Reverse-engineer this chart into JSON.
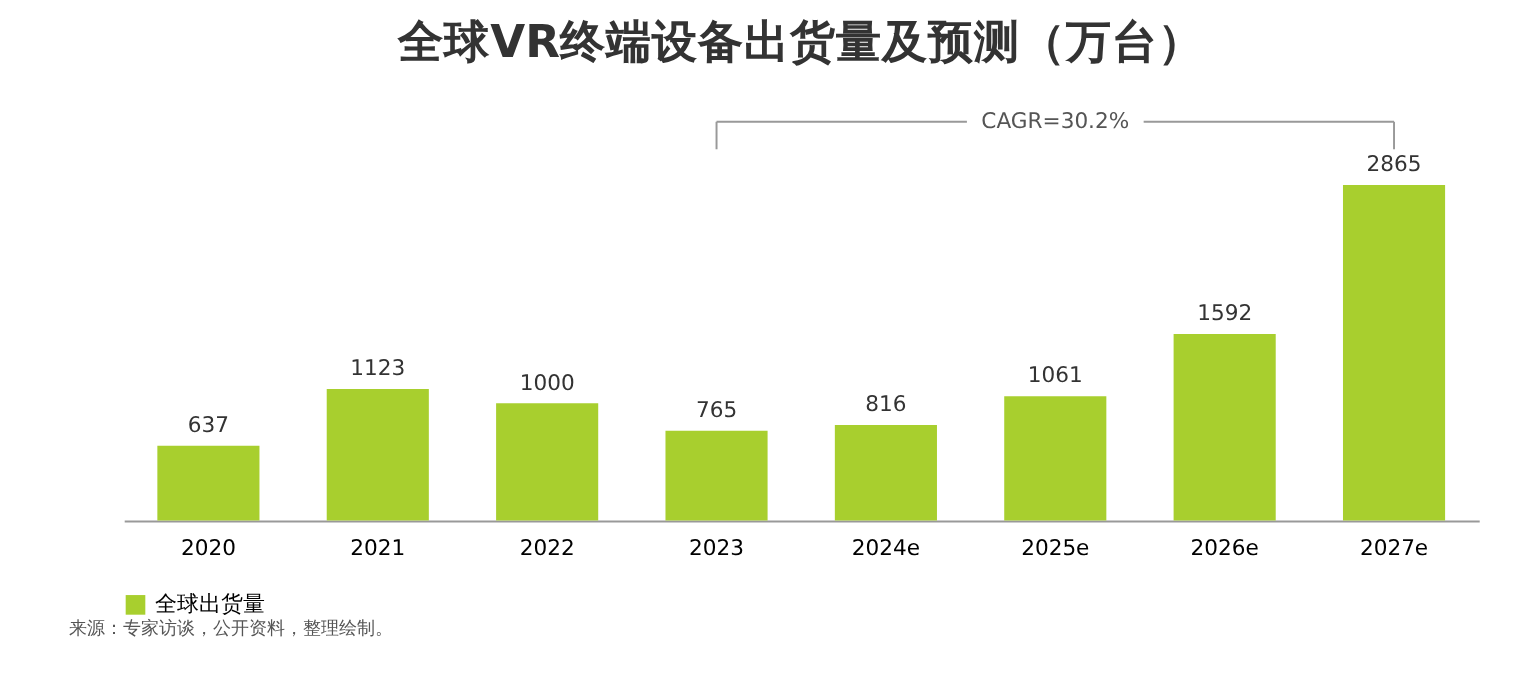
{
  "chart_data": {
    "type": "bar",
    "title": "全球VR终端设备出货量及预测（万台）",
    "categories": [
      "2020",
      "2021",
      "2022",
      "2023",
      "2024e",
      "2025e",
      "2026e",
      "2027e"
    ],
    "series": [
      {
        "name": "全球出货量",
        "color": "#a8cf2e",
        "values": [
          637,
          1123,
          1000,
          765,
          816,
          1061,
          1592,
          2865
        ]
      }
    ],
    "data_labels": true,
    "legend": "bottom",
    "grid": false,
    "annotations": [
      "CAGR=30.2%",
      "来源：专家访谈，公开资料，整理绘制。"
    ]
  }
}
